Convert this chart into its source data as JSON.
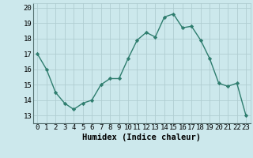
{
  "x": [
    0,
    1,
    2,
    3,
    4,
    5,
    6,
    7,
    8,
    9,
    10,
    11,
    12,
    13,
    14,
    15,
    16,
    17,
    18,
    19,
    20,
    21,
    22,
    23
  ],
  "y": [
    17.0,
    16.0,
    14.5,
    13.8,
    13.4,
    13.8,
    14.0,
    15.0,
    15.4,
    15.4,
    16.7,
    17.9,
    18.4,
    18.1,
    19.4,
    19.6,
    18.7,
    18.8,
    17.9,
    16.7,
    15.1,
    14.9,
    15.1,
    13.0
  ],
  "line_color": "#2e7d6e",
  "marker": "D",
  "markersize": 2.2,
  "linewidth": 1.0,
  "bg_color": "#cce8ec",
  "grid_color": "#b0cdd1",
  "xlabel": "Humidex (Indice chaleur)",
  "xlabel_fontsize": 7.5,
  "tick_fontsize": 6.5,
  "xlim": [
    -0.5,
    23.5
  ],
  "ylim": [
    12.5,
    20.3
  ],
  "yticks": [
    13,
    14,
    15,
    16,
    17,
    18,
    19,
    20
  ],
  "xticks": [
    0,
    1,
    2,
    3,
    4,
    5,
    6,
    7,
    8,
    9,
    10,
    11,
    12,
    13,
    14,
    15,
    16,
    17,
    18,
    19,
    20,
    21,
    22,
    23
  ]
}
